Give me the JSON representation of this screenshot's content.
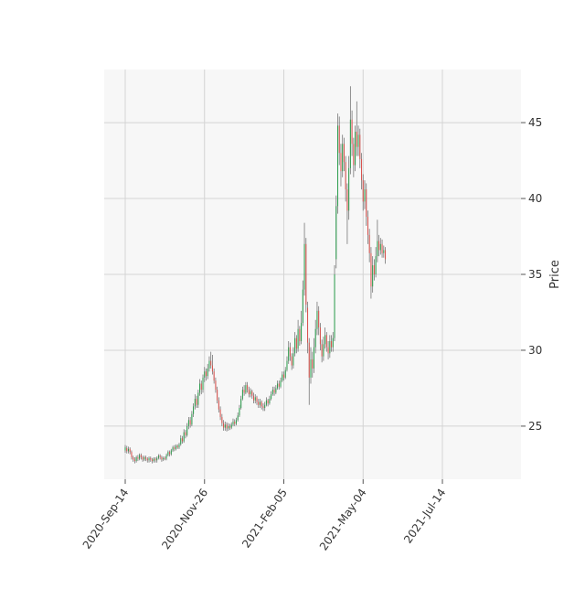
{
  "chart_data": {
    "type": "candlestick",
    "ylabel": "Price",
    "y_axis_side": "right",
    "ylim": [
      21.5,
      48.5
    ],
    "yticks": [
      25,
      30,
      35,
      40,
      45
    ],
    "xticks": [
      "2020-Sep-14",
      "2020-Nov-26",
      "2021-Feb-05",
      "2021-May-04",
      "2021-Jul-14"
    ],
    "x_tick_positions": [
      0,
      50,
      100,
      150,
      200
    ],
    "grid": true,
    "colors": {
      "up": "#2e9e4f",
      "down": "#d9534f",
      "wick": "#777777",
      "background": "#f7f7f7",
      "grid": "#d4d4d4"
    },
    "candles": [
      {
        "o": 23.4,
        "c": 23.6,
        "h": 23.75,
        "l": 23.25
      },
      {
        "o": 23.55,
        "c": 23.35,
        "h": 23.7,
        "l": 23.2
      },
      {
        "o": 23.35,
        "c": 23.5,
        "h": 23.65,
        "l": 23.2
      },
      {
        "o": 23.5,
        "c": 23.3,
        "h": 23.6,
        "l": 23.15
      },
      {
        "o": 23.3,
        "c": 22.95,
        "h": 23.4,
        "l": 22.8
      },
      {
        "o": 22.95,
        "c": 22.8,
        "h": 23.05,
        "l": 22.65
      },
      {
        "o": 22.8,
        "c": 22.7,
        "h": 22.95,
        "l": 22.55
      },
      {
        "o": 22.7,
        "c": 22.95,
        "h": 23.05,
        "l": 22.6
      },
      {
        "o": 22.95,
        "c": 22.85,
        "h": 23.1,
        "l": 22.7
      },
      {
        "o": 22.85,
        "c": 23.1,
        "h": 23.2,
        "l": 22.75
      },
      {
        "o": 23.1,
        "c": 22.95,
        "h": 23.2,
        "l": 22.8
      },
      {
        "o": 22.95,
        "c": 22.8,
        "h": 23.05,
        "l": 22.65
      },
      {
        "o": 22.8,
        "c": 22.95,
        "h": 23.05,
        "l": 22.7
      },
      {
        "o": 22.95,
        "c": 22.85,
        "h": 23.05,
        "l": 22.7
      },
      {
        "o": 22.85,
        "c": 22.75,
        "h": 22.95,
        "l": 22.6
      },
      {
        "o": 22.75,
        "c": 22.9,
        "h": 23.0,
        "l": 22.6
      },
      {
        "o": 22.9,
        "c": 22.8,
        "h": 23.0,
        "l": 22.65
      },
      {
        "o": 22.8,
        "c": 22.7,
        "h": 22.9,
        "l": 22.55
      },
      {
        "o": 22.7,
        "c": 22.85,
        "h": 22.95,
        "l": 22.6
      },
      {
        "o": 22.85,
        "c": 22.75,
        "h": 22.95,
        "l": 22.6
      },
      {
        "o": 22.75,
        "c": 22.9,
        "h": 23.0,
        "l": 22.6
      },
      {
        "o": 22.9,
        "c": 23.05,
        "h": 23.15,
        "l": 22.8
      },
      {
        "o": 23.05,
        "c": 22.95,
        "h": 23.15,
        "l": 22.8
      },
      {
        "o": 22.95,
        "c": 22.8,
        "h": 23.05,
        "l": 22.65
      },
      {
        "o": 22.8,
        "c": 22.9,
        "h": 23.0,
        "l": 22.7
      },
      {
        "o": 22.9,
        "c": 22.85,
        "h": 23.0,
        "l": 22.75
      },
      {
        "o": 22.85,
        "c": 23.1,
        "h": 23.2,
        "l": 22.75
      },
      {
        "o": 23.1,
        "c": 23.3,
        "h": 23.4,
        "l": 23.0
      },
      {
        "o": 23.3,
        "c": 23.15,
        "h": 23.4,
        "l": 23.0
      },
      {
        "o": 23.15,
        "c": 23.4,
        "h": 23.5,
        "l": 23.05
      },
      {
        "o": 23.4,
        "c": 23.6,
        "h": 23.7,
        "l": 23.3
      },
      {
        "o": 23.6,
        "c": 23.5,
        "h": 23.75,
        "l": 23.35
      },
      {
        "o": 23.5,
        "c": 23.7,
        "h": 23.8,
        "l": 23.4
      },
      {
        "o": 23.7,
        "c": 23.6,
        "h": 23.8,
        "l": 23.5
      },
      {
        "o": 23.6,
        "c": 23.8,
        "h": 23.9,
        "l": 23.5
      },
      {
        "o": 23.8,
        "c": 24.2,
        "h": 24.4,
        "l": 23.7
      },
      {
        "o": 24.2,
        "c": 24.0,
        "h": 24.35,
        "l": 23.85
      },
      {
        "o": 24.0,
        "c": 24.6,
        "h": 24.8,
        "l": 23.9
      },
      {
        "o": 24.6,
        "c": 24.4,
        "h": 24.75,
        "l": 24.2
      },
      {
        "o": 24.4,
        "c": 25.0,
        "h": 25.2,
        "l": 24.3
      },
      {
        "o": 25.0,
        "c": 25.4,
        "h": 25.6,
        "l": 24.8
      },
      {
        "o": 25.4,
        "c": 25.1,
        "h": 25.6,
        "l": 24.9
      },
      {
        "o": 25.1,
        "c": 25.8,
        "h": 26.0,
        "l": 25.0
      },
      {
        "o": 25.8,
        "c": 26.3,
        "h": 26.5,
        "l": 25.6
      },
      {
        "o": 26.3,
        "c": 26.8,
        "h": 27.1,
        "l": 26.1
      },
      {
        "o": 26.8,
        "c": 26.4,
        "h": 27.0,
        "l": 26.2
      },
      {
        "o": 26.4,
        "c": 27.2,
        "h": 27.4,
        "l": 26.2
      },
      {
        "o": 27.2,
        "c": 27.8,
        "h": 28.1,
        "l": 27.0
      },
      {
        "o": 27.8,
        "c": 27.4,
        "h": 28.0,
        "l": 27.1
      },
      {
        "o": 27.4,
        "c": 28.2,
        "h": 28.4,
        "l": 27.2
      },
      {
        "o": 28.2,
        "c": 28.6,
        "h": 28.9,
        "l": 27.9
      },
      {
        "o": 28.6,
        "c": 28.3,
        "h": 28.8,
        "l": 28.0
      },
      {
        "o": 28.3,
        "c": 28.8,
        "h": 29.1,
        "l": 28.1
      },
      {
        "o": 28.8,
        "c": 29.3,
        "h": 29.6,
        "l": 28.6
      },
      {
        "o": 29.3,
        "c": 29.0,
        "h": 29.9,
        "l": 28.8
      },
      {
        "o": 29.0,
        "c": 28.6,
        "h": 29.7,
        "l": 28.4
      },
      {
        "o": 28.6,
        "c": 28.0,
        "h": 28.8,
        "l": 27.8
      },
      {
        "o": 28.0,
        "c": 27.4,
        "h": 28.2,
        "l": 27.2
      },
      {
        "o": 27.4,
        "c": 26.7,
        "h": 27.6,
        "l": 26.5
      },
      {
        "o": 26.7,
        "c": 26.1,
        "h": 26.9,
        "l": 25.9
      },
      {
        "o": 26.1,
        "c": 25.6,
        "h": 26.3,
        "l": 25.4
      },
      {
        "o": 25.6,
        "c": 25.2,
        "h": 25.8,
        "l": 25.0
      },
      {
        "o": 25.2,
        "c": 24.9,
        "h": 25.4,
        "l": 24.7
      },
      {
        "o": 24.9,
        "c": 25.1,
        "h": 25.3,
        "l": 24.7
      },
      {
        "o": 25.1,
        "c": 24.85,
        "h": 25.25,
        "l": 24.65
      },
      {
        "o": 24.85,
        "c": 25.0,
        "h": 25.2,
        "l": 24.7
      },
      {
        "o": 25.0,
        "c": 24.9,
        "h": 25.15,
        "l": 24.75
      },
      {
        "o": 24.9,
        "c": 25.1,
        "h": 25.25,
        "l": 24.8
      },
      {
        "o": 25.1,
        "c": 25.3,
        "h": 25.5,
        "l": 25.0
      },
      {
        "o": 25.3,
        "c": 25.15,
        "h": 25.45,
        "l": 25.0
      },
      {
        "o": 25.15,
        "c": 25.4,
        "h": 25.55,
        "l": 25.05
      },
      {
        "o": 25.4,
        "c": 25.7,
        "h": 25.9,
        "l": 25.3
      },
      {
        "o": 25.7,
        "c": 26.2,
        "h": 26.4,
        "l": 25.6
      },
      {
        "o": 26.2,
        "c": 26.8,
        "h": 27.0,
        "l": 26.1
      },
      {
        "o": 26.8,
        "c": 27.4,
        "h": 27.6,
        "l": 26.7
      },
      {
        "o": 27.4,
        "c": 27.2,
        "h": 27.7,
        "l": 27.0
      },
      {
        "o": 27.2,
        "c": 27.7,
        "h": 27.9,
        "l": 27.1
      },
      {
        "o": 27.7,
        "c": 27.4,
        "h": 27.9,
        "l": 27.2
      },
      {
        "o": 27.4,
        "c": 27.1,
        "h": 27.6,
        "l": 26.9
      },
      {
        "o": 27.1,
        "c": 27.3,
        "h": 27.5,
        "l": 26.9
      },
      {
        "o": 27.3,
        "c": 27.0,
        "h": 27.4,
        "l": 26.8
      },
      {
        "o": 27.0,
        "c": 26.7,
        "h": 27.2,
        "l": 26.5
      },
      {
        "o": 26.7,
        "c": 26.9,
        "h": 27.1,
        "l": 26.5
      },
      {
        "o": 26.9,
        "c": 26.6,
        "h": 27.0,
        "l": 26.4
      },
      {
        "o": 26.6,
        "c": 26.4,
        "h": 26.8,
        "l": 26.2
      },
      {
        "o": 26.4,
        "c": 26.6,
        "h": 26.8,
        "l": 26.2
      },
      {
        "o": 26.6,
        "c": 26.3,
        "h": 26.7,
        "l": 26.1
      },
      {
        "o": 26.3,
        "c": 26.2,
        "h": 26.5,
        "l": 26.0
      },
      {
        "o": 26.2,
        "c": 26.4,
        "h": 26.6,
        "l": 26.0
      },
      {
        "o": 26.4,
        "c": 26.7,
        "h": 26.9,
        "l": 26.3
      },
      {
        "o": 26.7,
        "c": 26.5,
        "h": 26.8,
        "l": 26.3
      },
      {
        "o": 26.5,
        "c": 26.8,
        "h": 27.0,
        "l": 26.4
      },
      {
        "o": 26.8,
        "c": 27.1,
        "h": 27.3,
        "l": 26.7
      },
      {
        "o": 27.1,
        "c": 27.4,
        "h": 27.6,
        "l": 27.0
      },
      {
        "o": 27.4,
        "c": 27.2,
        "h": 27.6,
        "l": 27.0
      },
      {
        "o": 27.2,
        "c": 27.5,
        "h": 27.7,
        "l": 27.1
      },
      {
        "o": 27.5,
        "c": 27.8,
        "h": 28.0,
        "l": 27.4
      },
      {
        "o": 27.8,
        "c": 27.6,
        "h": 28.0,
        "l": 27.4
      },
      {
        "o": 27.6,
        "c": 28.0,
        "h": 28.2,
        "l": 27.5
      },
      {
        "o": 28.0,
        "c": 28.4,
        "h": 28.6,
        "l": 27.9
      },
      {
        "o": 28.4,
        "c": 28.2,
        "h": 28.6,
        "l": 28.0
      },
      {
        "o": 28.2,
        "c": 28.7,
        "h": 28.9,
        "l": 28.1
      },
      {
        "o": 28.7,
        "c": 29.3,
        "h": 29.6,
        "l": 28.6
      },
      {
        "o": 29.3,
        "c": 30.2,
        "h": 30.6,
        "l": 29.1
      },
      {
        "o": 30.2,
        "c": 29.6,
        "h": 30.5,
        "l": 29.3
      },
      {
        "o": 29.6,
        "c": 29.0,
        "h": 29.8,
        "l": 28.7
      },
      {
        "o": 29.0,
        "c": 29.8,
        "h": 30.2,
        "l": 28.8
      },
      {
        "o": 29.8,
        "c": 30.8,
        "h": 31.2,
        "l": 29.6
      },
      {
        "o": 30.8,
        "c": 30.1,
        "h": 31.0,
        "l": 29.8
      },
      {
        "o": 30.1,
        "c": 31.4,
        "h": 32.0,
        "l": 29.9
      },
      {
        "o": 31.4,
        "c": 30.6,
        "h": 31.6,
        "l": 30.3
      },
      {
        "o": 30.6,
        "c": 31.8,
        "h": 32.6,
        "l": 30.4
      },
      {
        "o": 31.8,
        "c": 34.0,
        "h": 34.6,
        "l": 31.6
      },
      {
        "o": 34.0,
        "c": 37.0,
        "h": 38.4,
        "l": 33.6
      },
      {
        "o": 37.0,
        "c": 33.0,
        "h": 37.4,
        "l": 32.5
      },
      {
        "o": 32.8,
        "c": 30.5,
        "h": 33.2,
        "l": 29.8
      },
      {
        "o": 30.5,
        "c": 28.2,
        "h": 30.8,
        "l": 26.4
      },
      {
        "o": 28.2,
        "c": 29.4,
        "h": 30.2,
        "l": 27.8
      },
      {
        "o": 29.4,
        "c": 28.8,
        "h": 29.9,
        "l": 28.2
      },
      {
        "o": 28.8,
        "c": 30.2,
        "h": 30.8,
        "l": 28.5
      },
      {
        "o": 30.2,
        "c": 31.4,
        "h": 32.0,
        "l": 29.8
      },
      {
        "o": 31.4,
        "c": 32.6,
        "h": 33.2,
        "l": 31.0
      },
      {
        "o": 32.6,
        "c": 31.5,
        "h": 32.9,
        "l": 31.0
      },
      {
        "o": 31.5,
        "c": 30.4,
        "h": 31.8,
        "l": 30.0
      },
      {
        "o": 30.4,
        "c": 29.6,
        "h": 30.7,
        "l": 29.2
      },
      {
        "o": 29.6,
        "c": 30.4,
        "h": 30.9,
        "l": 29.3
      },
      {
        "o": 30.4,
        "c": 31.0,
        "h": 31.5,
        "l": 30.1
      },
      {
        "o": 31.0,
        "c": 30.2,
        "h": 31.2,
        "l": 29.9
      },
      {
        "o": 30.2,
        "c": 29.8,
        "h": 30.6,
        "l": 29.4
      },
      {
        "o": 29.8,
        "c": 30.6,
        "h": 31.0,
        "l": 29.5
      },
      {
        "o": 30.6,
        "c": 30.2,
        "h": 31.0,
        "l": 29.9
      },
      {
        "o": 30.2,
        "c": 30.8,
        "h": 31.2,
        "l": 29.9
      },
      {
        "o": 30.8,
        "c": 35.0,
        "h": 35.6,
        "l": 30.6
      },
      {
        "o": 36.0,
        "c": 39.5,
        "h": 40.2,
        "l": 35.4
      },
      {
        "o": 39.5,
        "c": 44.8,
        "h": 45.6,
        "l": 39.0
      },
      {
        "o": 44.8,
        "c": 43.0,
        "h": 45.4,
        "l": 42.2
      },
      {
        "o": 43.0,
        "c": 41.8,
        "h": 43.6,
        "l": 40.8
      },
      {
        "o": 41.8,
        "c": 43.6,
        "h": 44.2,
        "l": 41.4
      },
      {
        "o": 43.6,
        "c": 42.4,
        "h": 44.0,
        "l": 41.8
      },
      {
        "o": 42.4,
        "c": 40.6,
        "h": 42.8,
        "l": 39.8
      },
      {
        "o": 40.6,
        "c": 39.2,
        "h": 41.0,
        "l": 37.0
      },
      {
        "o": 39.2,
        "c": 42.0,
        "h": 42.8,
        "l": 38.6
      },
      {
        "o": 42.0,
        "c": 45.2,
        "h": 47.4,
        "l": 41.6
      },
      {
        "o": 45.2,
        "c": 43.6,
        "h": 45.8,
        "l": 42.8
      },
      {
        "o": 43.6,
        "c": 42.2,
        "h": 44.0,
        "l": 41.4
      },
      {
        "o": 42.2,
        "c": 44.4,
        "h": 44.8,
        "l": 41.8
      },
      {
        "o": 44.4,
        "c": 43.4,
        "h": 46.4,
        "l": 42.8
      },
      {
        "o": 43.4,
        "c": 44.2,
        "h": 44.8,
        "l": 42.8
      },
      {
        "o": 44.2,
        "c": 42.6,
        "h": 44.6,
        "l": 42.0
      },
      {
        "o": 42.6,
        "c": 41.2,
        "h": 43.0,
        "l": 40.6
      },
      {
        "o": 41.2,
        "c": 39.8,
        "h": 41.6,
        "l": 39.2
      },
      {
        "o": 39.8,
        "c": 40.6,
        "h": 41.2,
        "l": 39.3
      },
      {
        "o": 40.6,
        "c": 38.8,
        "h": 41.0,
        "l": 38.2
      },
      {
        "o": 38.8,
        "c": 37.6,
        "h": 39.2,
        "l": 37.0
      },
      {
        "o": 37.6,
        "c": 36.4,
        "h": 38.0,
        "l": 35.8
      },
      {
        "o": 36.4,
        "c": 34.2,
        "h": 36.8,
        "l": 33.4
      },
      {
        "o": 34.2,
        "c": 35.6,
        "h": 36.2,
        "l": 33.8
      },
      {
        "o": 35.6,
        "c": 35.0,
        "h": 36.0,
        "l": 34.6
      },
      {
        "o": 35.0,
        "c": 36.2,
        "h": 36.8,
        "l": 34.8
      },
      {
        "o": 36.2,
        "c": 37.2,
        "h": 38.6,
        "l": 35.8
      },
      {
        "o": 37.2,
        "c": 36.6,
        "h": 37.6,
        "l": 36.2
      },
      {
        "o": 36.6,
        "c": 37.0,
        "h": 37.4,
        "l": 36.3
      },
      {
        "o": 37.0,
        "c": 36.4,
        "h": 37.3,
        "l": 36.1
      },
      {
        "o": 36.4,
        "c": 36.6,
        "h": 36.9,
        "l": 36.1
      },
      {
        "o": 36.6,
        "c": 36.0,
        "h": 36.8,
        "l": 35.7
      }
    ]
  }
}
